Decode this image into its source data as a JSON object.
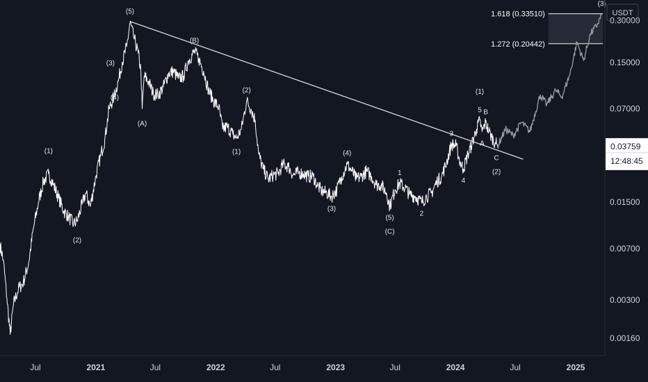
{
  "chart_data": {
    "type": "line",
    "y_scale": "log",
    "currency": "USDT",
    "ylim": [
      0.0012,
      0.42
    ],
    "xlim": [
      "2020-03-15",
      "2025-03-31"
    ],
    "y_ticks": [
      {
        "value": 0.3,
        "label": "0.30000"
      },
      {
        "value": 0.15,
        "label": "0.15000"
      },
      {
        "value": 0.07,
        "label": "0.07000"
      },
      {
        "value": 0.015,
        "label": "0.01500"
      },
      {
        "value": 0.007,
        "label": "0.00700"
      },
      {
        "value": 0.003,
        "label": "0.00300"
      },
      {
        "value": 0.0016,
        "label": "0.00160"
      }
    ],
    "x_ticks": [
      {
        "date": "2020-07-01",
        "label": "Jul",
        "bold": false
      },
      {
        "date": "2021-01-01",
        "label": "2021",
        "bold": true
      },
      {
        "date": "2021-07-01",
        "label": "Jul",
        "bold": false
      },
      {
        "date": "2022-01-01",
        "label": "2022",
        "bold": true
      },
      {
        "date": "2022-07-01",
        "label": "Jul",
        "bold": false
      },
      {
        "date": "2023-01-01",
        "label": "2023",
        "bold": true
      },
      {
        "date": "2023-07-01",
        "label": "Jul",
        "bold": false
      },
      {
        "date": "2024-01-01",
        "label": "2024",
        "bold": true
      },
      {
        "date": "2024-07-01",
        "label": "Jul",
        "bold": false
      },
      {
        "date": "2025-01-01",
        "label": "2025",
        "bold": true
      }
    ],
    "current_price": {
      "value": 0.03759,
      "label": "0.03759",
      "countdown": "12:48:45"
    },
    "price_series": [
      [
        "2020-03-15",
        0.0075
      ],
      [
        "2020-03-25",
        0.0058
      ],
      [
        "2020-04-05",
        0.0031
      ],
      [
        "2020-04-15",
        0.0017
      ],
      [
        "2020-04-25",
        0.0028
      ],
      [
        "2020-05-10",
        0.0036
      ],
      [
        "2020-05-25",
        0.004
      ],
      [
        "2020-06-10",
        0.0055
      ],
      [
        "2020-06-25",
        0.0098
      ],
      [
        "2020-07-10",
        0.015
      ],
      [
        "2020-07-25",
        0.021
      ],
      [
        "2020-08-10",
        0.024
      ],
      [
        "2020-08-25",
        0.02
      ],
      [
        "2020-09-10",
        0.016
      ],
      [
        "2020-09-25",
        0.013
      ],
      [
        "2020-10-10",
        0.0118
      ],
      [
        "2020-10-25",
        0.0105
      ],
      [
        "2020-11-05",
        0.011
      ],
      [
        "2020-11-20",
        0.0145
      ],
      [
        "2020-12-01",
        0.0175
      ],
      [
        "2020-12-15",
        0.014
      ],
      [
        "2021-01-01",
        0.023
      ],
      [
        "2021-01-15",
        0.032
      ],
      [
        "2021-01-28",
        0.042
      ],
      [
        "2021-02-10",
        0.07
      ],
      [
        "2021-02-25",
        0.085
      ],
      [
        "2021-03-10",
        0.11
      ],
      [
        "2021-03-22",
        0.15
      ],
      [
        "2021-04-05",
        0.195
      ],
      [
        "2021-04-15",
        0.29
      ],
      [
        "2021-04-28",
        0.22
      ],
      [
        "2021-05-10",
        0.175
      ],
      [
        "2021-05-18",
        0.13
      ],
      [
        "2021-05-22",
        0.07
      ],
      [
        "2021-05-28",
        0.12
      ],
      [
        "2021-06-10",
        0.11
      ],
      [
        "2021-06-25",
        0.09
      ],
      [
        "2021-07-10",
        0.088
      ],
      [
        "2021-07-25",
        0.1
      ],
      [
        "2021-08-10",
        0.125
      ],
      [
        "2021-08-25",
        0.13
      ],
      [
        "2021-09-10",
        0.115
      ],
      [
        "2021-09-25",
        0.12
      ],
      [
        "2021-10-10",
        0.155
      ],
      [
        "2021-10-28",
        0.18
      ],
      [
        "2021-11-10",
        0.16
      ],
      [
        "2021-11-25",
        0.13
      ],
      [
        "2021-12-10",
        0.095
      ],
      [
        "2021-12-25",
        0.08
      ],
      [
        "2022-01-10",
        0.072
      ],
      [
        "2022-01-22",
        0.05
      ],
      [
        "2022-02-05",
        0.052
      ],
      [
        "2022-02-22",
        0.046
      ],
      [
        "2022-03-05",
        0.043
      ],
      [
        "2022-03-20",
        0.05
      ],
      [
        "2022-04-05",
        0.08
      ],
      [
        "2022-04-18",
        0.07
      ],
      [
        "2022-05-01",
        0.058
      ],
      [
        "2022-05-12",
        0.033
      ],
      [
        "2022-05-25",
        0.026
      ],
      [
        "2022-06-10",
        0.022
      ],
      [
        "2022-06-25",
        0.0235
      ],
      [
        "2022-07-10",
        0.024
      ],
      [
        "2022-07-25",
        0.028
      ],
      [
        "2022-08-10",
        0.027
      ],
      [
        "2022-08-25",
        0.0235
      ],
      [
        "2022-09-10",
        0.0245
      ],
      [
        "2022-09-25",
        0.024
      ],
      [
        "2022-10-10",
        0.023
      ],
      [
        "2022-10-25",
        0.023
      ],
      [
        "2022-11-05",
        0.02
      ],
      [
        "2022-11-20",
        0.018
      ],
      [
        "2022-12-05",
        0.0175
      ],
      [
        "2022-12-20",
        0.0165
      ],
      [
        "2023-01-05",
        0.0185
      ],
      [
        "2023-01-20",
        0.023
      ],
      [
        "2023-02-05",
        0.028
      ],
      [
        "2023-02-20",
        0.025
      ],
      [
        "2023-03-05",
        0.022
      ],
      [
        "2023-03-20",
        0.023
      ],
      [
        "2023-04-05",
        0.025
      ],
      [
        "2023-04-20",
        0.023
      ],
      [
        "2023-05-05",
        0.02
      ],
      [
        "2023-05-20",
        0.02
      ],
      [
        "2023-06-05",
        0.0175
      ],
      [
        "2023-06-15",
        0.014
      ],
      [
        "2023-07-01",
        0.0185
      ],
      [
        "2023-07-15",
        0.0205
      ],
      [
        "2023-08-01",
        0.019
      ],
      [
        "2023-08-15",
        0.017
      ],
      [
        "2023-09-01",
        0.0165
      ],
      [
        "2023-09-20",
        0.015
      ],
      [
        "2023-10-05",
        0.0165
      ],
      [
        "2023-10-20",
        0.0175
      ],
      [
        "2023-11-05",
        0.021
      ],
      [
        "2023-11-20",
        0.023
      ],
      [
        "2023-12-05",
        0.029
      ],
      [
        "2023-12-20",
        0.039
      ],
      [
        "2024-01-03",
        0.038
      ],
      [
        "2024-01-15",
        0.029
      ],
      [
        "2024-01-25",
        0.026
      ],
      [
        "2024-02-08",
        0.033
      ],
      [
        "2024-02-18",
        0.038
      ],
      [
        "2024-03-05",
        0.05
      ],
      [
        "2024-03-15",
        0.058
      ],
      [
        "2024-03-22",
        0.048
      ],
      [
        "2024-04-02",
        0.056
      ],
      [
        "2024-04-12",
        0.048
      ],
      [
        "2024-04-20",
        0.044
      ],
      [
        "2024-05-01",
        0.04
      ],
      [
        "2024-05-08",
        0.0376
      ]
    ],
    "projection_series": [
      [
        "2024-05-08",
        0.0376
      ],
      [
        "2024-06-01",
        0.05
      ],
      [
        "2024-06-25",
        0.045
      ],
      [
        "2024-07-20",
        0.056
      ],
      [
        "2024-08-15",
        0.048
      ],
      [
        "2024-09-15",
        0.088
      ],
      [
        "2024-10-05",
        0.075
      ],
      [
        "2024-11-01",
        0.095
      ],
      [
        "2024-11-20",
        0.085
      ],
      [
        "2024-12-15",
        0.125
      ],
      [
        "2025-01-05",
        0.21
      ],
      [
        "2025-01-25",
        0.155
      ],
      [
        "2025-02-15",
        0.24
      ],
      [
        "2025-03-08",
        0.28
      ],
      [
        "2025-03-22",
        0.3351
      ]
    ],
    "trendline": [
      [
        "2021-04-15",
        0.295
      ],
      [
        "2024-07-25",
        0.0305
      ]
    ],
    "fib_levels": [
      {
        "ratio": "1.618",
        "price": 0.3351,
        "label": "1.618 (0.33510)"
      },
      {
        "ratio": "1.272",
        "price": 0.20442,
        "label": "1.272 (0.20442)"
      }
    ],
    "fib_zone": {
      "start": "2024-10-10",
      "end": "2025-03-25"
    },
    "wave_labels": [
      {
        "text": "(1)",
        "date": "2020-08-10",
        "price": 0.03,
        "pos": "above"
      },
      {
        "text": "(2)",
        "date": "2020-11-05",
        "price": 0.0095,
        "pos": "below"
      },
      {
        "text": "(3)",
        "date": "2021-03-12",
        "price": 0.15,
        "pos": "left"
      },
      {
        "text": "(4)",
        "date": "2021-03-25",
        "price": 0.085,
        "pos": "left"
      },
      {
        "text": "(5)",
        "date": "2021-04-15",
        "price": 0.3,
        "pos": "above"
      },
      {
        "text": "(A)",
        "date": "2021-05-22",
        "price": 0.065,
        "pos": "below"
      },
      {
        "text": "(B)",
        "date": "2021-10-28",
        "price": 0.185,
        "pos": "above"
      },
      {
        "text": "(1)",
        "date": "2022-03-05",
        "price": 0.041,
        "pos": "below"
      },
      {
        "text": "(2)",
        "date": "2022-04-05",
        "price": 0.082,
        "pos": "above"
      },
      {
        "text": "(3)",
        "date": "2022-12-20",
        "price": 0.016,
        "pos": "below"
      },
      {
        "text": "(4)",
        "date": "2023-02-05",
        "price": 0.029,
        "pos": "above"
      },
      {
        "text": "(5)",
        "date": "2023-06-15",
        "price": 0.0138,
        "pos": "below"
      },
      {
        "text": "(C)",
        "date": "2023-06-15",
        "price": 0.0138,
        "pos": "below2"
      },
      {
        "text": "1",
        "date": "2023-07-15",
        "price": 0.021,
        "pos": "above"
      },
      {
        "text": "2",
        "date": "2023-09-20",
        "price": 0.0148,
        "pos": "below"
      },
      {
        "text": "3",
        "date": "2023-12-20",
        "price": 0.04,
        "pos": "above"
      },
      {
        "text": "4",
        "date": "2024-01-25",
        "price": 0.0255,
        "pos": "below"
      },
      {
        "text": "(1)",
        "date": "2024-03-15",
        "price": 0.08,
        "pos": "above"
      },
      {
        "text": "5",
        "date": "2024-03-15",
        "price": 0.059,
        "pos": "above"
      },
      {
        "text": "A",
        "date": "2024-03-22",
        "price": 0.047,
        "pos": "below"
      },
      {
        "text": "B",
        "date": "2024-04-02",
        "price": 0.057,
        "pos": "above"
      },
      {
        "text": "C",
        "date": "2024-05-05",
        "price": 0.037,
        "pos": "below"
      },
      {
        "text": "(2)",
        "date": "2024-05-05",
        "price": 0.037,
        "pos": "below2"
      },
      {
        "text": "(3)",
        "date": "2025-03-22",
        "price": 0.34,
        "pos": "above"
      }
    ],
    "colors": {
      "background": "#131722",
      "price_line": "#ffffff",
      "projection_line": "#9a9ca3",
      "trendline": "#d9d9d9",
      "fib_line": "#ffffff",
      "fib_zone_fill": "#2a2e39",
      "axis_text": "#d1d4dc",
      "price_box": "#ffffff"
    }
  }
}
